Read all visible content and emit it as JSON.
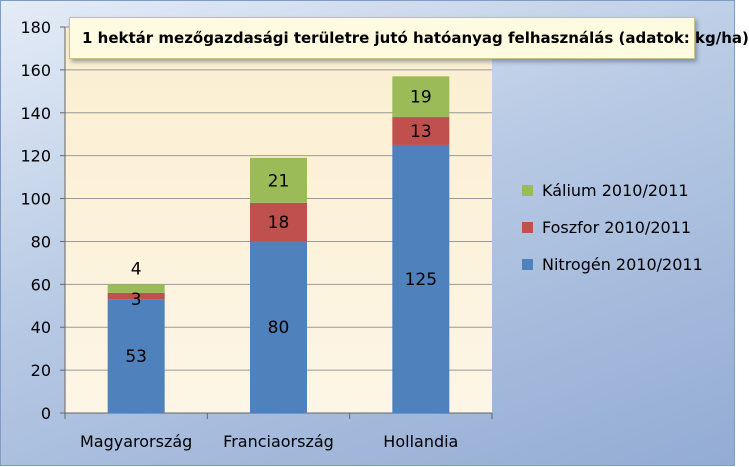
{
  "chart_data": {
    "type": "bar",
    "stacked": true,
    "title": "1 hektár mezőgazdasági területre jutó hatóanyag felhasználás (adatok: kg/ha)",
    "categories": [
      "Magyarország",
      "Franciaország",
      "Hollandia"
    ],
    "series": [
      {
        "name": "Nitrogén 2010/2011",
        "values": [
          53,
          80,
          125
        ],
        "color": "#4f81bd"
      },
      {
        "name": "Foszfor 2010/2011",
        "values": [
          3,
          18,
          13
        ],
        "color": "#c0504d"
      },
      {
        "name": "Kálium 2010/2011",
        "values": [
          4,
          21,
          19
        ],
        "color": "#9bbb59"
      }
    ],
    "ylim": [
      0,
      180
    ],
    "yticks": [
      0,
      20,
      40,
      60,
      80,
      100,
      120,
      140,
      160,
      180
    ],
    "grid": true,
    "legend_position": "right",
    "xlabel": "",
    "ylabel": ""
  }
}
